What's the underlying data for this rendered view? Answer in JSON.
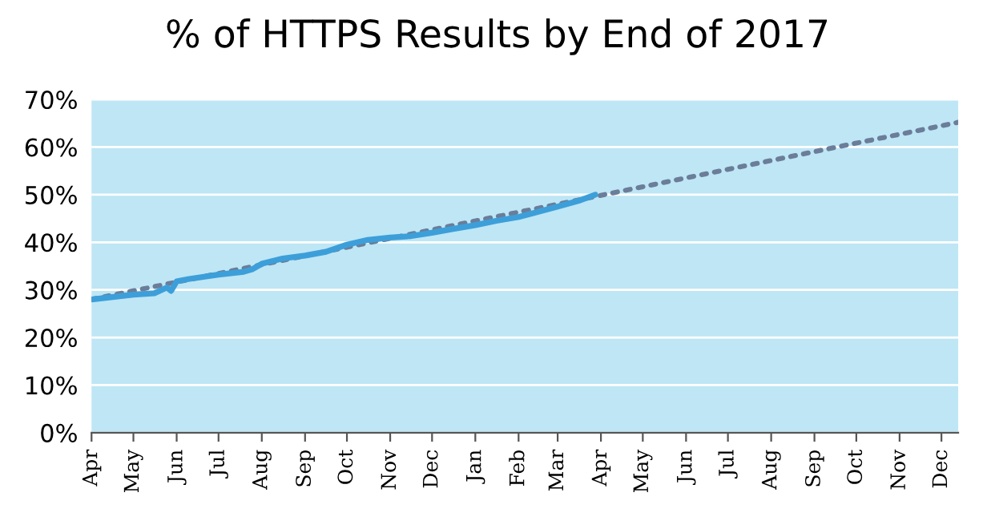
{
  "chart_data": {
    "type": "line",
    "title": "% of HTTPS Results by End of 2017",
    "xlim": [
      "2016-04-01",
      "2017-12-13"
    ],
    "xticks": [
      {
        "value": "2016-04-01",
        "label": "Apr"
      },
      {
        "value": "2016-05-01",
        "label": "May"
      },
      {
        "value": "2016-06-01",
        "label": "Jun"
      },
      {
        "value": "2016-07-01",
        "label": "Jul"
      },
      {
        "value": "2016-08-01",
        "label": "Aug"
      },
      {
        "value": "2016-09-01",
        "label": "Sep"
      },
      {
        "value": "2016-10-01",
        "label": "Oct"
      },
      {
        "value": "2016-11-01",
        "label": "Nov"
      },
      {
        "value": "2016-12-01",
        "label": "Dec"
      },
      {
        "value": "2017-01-01",
        "label": "Jan"
      },
      {
        "value": "2017-02-01",
        "label": "Feb"
      },
      {
        "value": "2017-03-01",
        "label": "Mar"
      },
      {
        "value": "2017-04-01",
        "label": "Apr"
      },
      {
        "value": "2017-05-01",
        "label": "May"
      },
      {
        "value": "2017-06-01",
        "label": "Jun"
      },
      {
        "value": "2017-07-01",
        "label": "Jul"
      },
      {
        "value": "2017-08-01",
        "label": "Aug"
      },
      {
        "value": "2017-09-01",
        "label": "Sep"
      },
      {
        "value": "2017-10-01",
        "label": "Oct"
      },
      {
        "value": "2017-11-01",
        "label": "Nov"
      },
      {
        "value": "2017-12-01",
        "label": "Dec"
      }
    ],
    "ylim": [
      0,
      70
    ],
    "yticks": [
      {
        "value": 0,
        "label": "0%"
      },
      {
        "value": 10,
        "label": "10%"
      },
      {
        "value": 20,
        "label": "20%"
      },
      {
        "value": 30,
        "label": "30%"
      },
      {
        "value": 40,
        "label": "40%"
      },
      {
        "value": 50,
        "label": "50%"
      },
      {
        "value": 60,
        "label": "60%"
      },
      {
        "value": 70,
        "label": "70%"
      }
    ],
    "grid": "y",
    "series": [
      {
        "color": "#6b7d99",
        "line_style": "dotted",
        "x": [
          "2016-04-01",
          "2017-12-13"
        ],
        "values": [
          28,
          65.2
        ]
      },
      {
        "color": "#3d9fd9",
        "line_style": "solid",
        "x": [
          "2016-04-01",
          "2016-04-16",
          "2016-05-01",
          "2016-05-16",
          "2016-05-25",
          "2016-05-28",
          "2016-06-01",
          "2016-06-10",
          "2016-07-01",
          "2016-07-19",
          "2016-07-25",
          "2016-08-01",
          "2016-08-16",
          "2016-09-01",
          "2016-09-16",
          "2016-10-01",
          "2016-10-16",
          "2016-11-01",
          "2016-11-16",
          "2016-12-01",
          "2016-12-16",
          "2017-01-01",
          "2017-01-16",
          "2017-02-01",
          "2017-02-14",
          "2017-03-01",
          "2017-03-16",
          "2017-03-28"
        ],
        "values": [
          28,
          28.5,
          29,
          29.3,
          30.5,
          29.8,
          31.8,
          32.3,
          33.2,
          33.8,
          34.3,
          35.5,
          36.6,
          37.2,
          38,
          39.5,
          40.5,
          41,
          41.3,
          42,
          42.8,
          43.6,
          44.5,
          45.3,
          46.3,
          47.5,
          48.7,
          50
        ]
      }
    ]
  }
}
